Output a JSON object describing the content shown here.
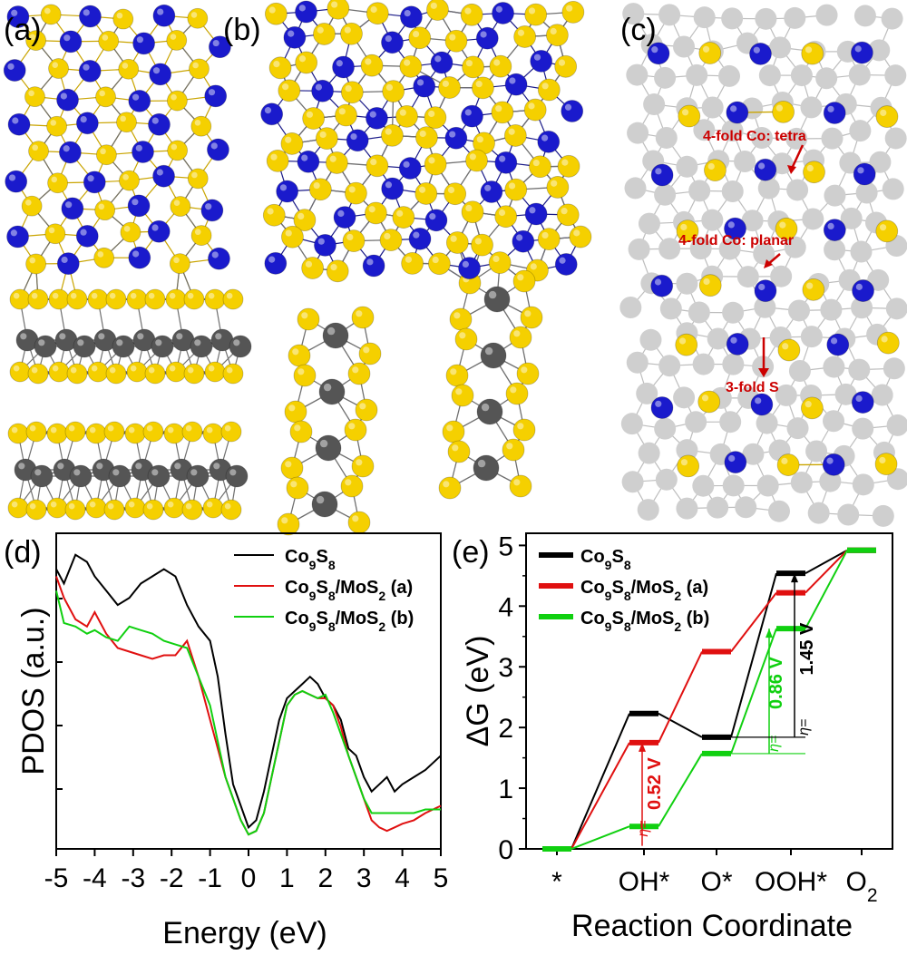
{
  "panels": {
    "a": {
      "label": "(a)"
    },
    "b": {
      "label": "(b)"
    },
    "c": {
      "label": "(c)",
      "annotations": [
        "4-fold Co: tetra",
        "4-fold Co: planar",
        "3-fold S"
      ]
    },
    "d": {
      "label": "(d)"
    },
    "e": {
      "label": "(e)"
    }
  },
  "colors": {
    "co_atom": "#1a1acc",
    "s_atom": "#f5d000",
    "mo_atom": "#555555",
    "bg_atom": "#cfcfcf",
    "annotation": "#cc0000",
    "black_series": "#000000",
    "red_series": "#e01010",
    "green_series": "#10d010"
  },
  "chart_data": [
    {
      "type": "line",
      "panel": "d",
      "xlabel": "Energy (eV)",
      "ylabel": "PDOS (a.u.)",
      "xlim": [
        -5,
        5
      ],
      "xticks": [
        "-5",
        "-4",
        "-3",
        "-2",
        "-1",
        "0",
        "1",
        "2",
        "3",
        "4",
        "5"
      ],
      "legend": [
        "Co9S8",
        "Co9S8/MoS2 (a)",
        "Co9S8/MoS2 (b)"
      ],
      "legend_position": "top-right",
      "series": [
        {
          "name": "Co9S8",
          "color": "#000000",
          "x": [
            -5,
            -4.8,
            -4.5,
            -4.2,
            -4,
            -3.7,
            -3.4,
            -3.1,
            -2.8,
            -2.5,
            -2.2,
            -1.9,
            -1.6,
            -1.3,
            -1,
            -0.8,
            -0.6,
            -0.4,
            -0.2,
            0,
            0.2,
            0.4,
            0.6,
            0.8,
            1,
            1.2,
            1.4,
            1.6,
            1.8,
            2,
            2.2,
            2.4,
            2.6,
            2.8,
            3,
            3.2,
            3.4,
            3.6,
            3.8,
            4,
            4.3,
            4.6,
            5
          ],
          "y": [
            9.1,
            8.9,
            9.3,
            9.2,
            9.0,
            8.8,
            8.6,
            8.7,
            8.9,
            9.0,
            9.1,
            9.0,
            8.6,
            8.3,
            8.1,
            7.6,
            6.8,
            6.1,
            5.8,
            5.5,
            5.6,
            6.0,
            6.5,
            7.0,
            7.3,
            7.4,
            7.5,
            7.6,
            7.5,
            7.3,
            7.2,
            7.0,
            6.6,
            6.5,
            6.2,
            6.0,
            6.1,
            6.2,
            6.0,
            6.1,
            6.2,
            6.3,
            6.5
          ]
        },
        {
          "name": "Co9S8/MoS2 (a)",
          "color": "#e01010",
          "x": [
            -5,
            -4.8,
            -4.5,
            -4.2,
            -4,
            -3.7,
            -3.4,
            -3.1,
            -2.8,
            -2.5,
            -2.2,
            -1.9,
            -1.6,
            -1.3,
            -1,
            -0.8,
            -0.6,
            -0.4,
            -0.2,
            0,
            0.2,
            0.4,
            0.6,
            0.8,
            1,
            1.2,
            1.4,
            1.6,
            1.8,
            2,
            2.2,
            2.4,
            2.6,
            2.8,
            3,
            3.2,
            3.4,
            3.6,
            3.8,
            4,
            4.3,
            4.6,
            5
          ],
          "y": [
            9.0,
            8.7,
            8.4,
            8.3,
            8.5,
            8.2,
            8.0,
            7.95,
            7.9,
            7.85,
            7.9,
            7.9,
            8.1,
            7.6,
            7.0,
            6.6,
            6.2,
            5.9,
            5.6,
            5.4,
            5.45,
            5.7,
            6.2,
            6.7,
            7.2,
            7.35,
            7.4,
            7.35,
            7.3,
            7.3,
            7.2,
            6.9,
            6.5,
            6.2,
            5.9,
            5.6,
            5.5,
            5.45,
            5.5,
            5.55,
            5.6,
            5.7,
            5.8
          ]
        },
        {
          "name": "Co9S8/MoS2 (b)",
          "color": "#10d010",
          "x": [
            -5,
            -4.8,
            -4.5,
            -4.2,
            -4,
            -3.7,
            -3.4,
            -3.1,
            -2.8,
            -2.5,
            -2.2,
            -1.9,
            -1.6,
            -1.3,
            -1,
            -0.8,
            -0.6,
            -0.4,
            -0.2,
            0,
            0.2,
            0.4,
            0.6,
            0.8,
            1,
            1.2,
            1.4,
            1.6,
            1.8,
            2,
            2.2,
            2.4,
            2.6,
            2.8,
            3,
            3.2,
            3.4,
            3.6,
            3.8,
            4,
            4.3,
            4.6,
            5
          ],
          "y": [
            8.8,
            8.35,
            8.3,
            8.2,
            8.25,
            8.15,
            8.1,
            8.3,
            8.25,
            8.2,
            8.1,
            8.05,
            8.0,
            7.6,
            7.2,
            6.7,
            6.2,
            5.9,
            5.6,
            5.4,
            5.45,
            5.7,
            6.2,
            6.7,
            7.2,
            7.35,
            7.4,
            7.35,
            7.3,
            7.35,
            7.1,
            6.8,
            6.5,
            6.2,
            5.9,
            5.7,
            5.7,
            5.7,
            5.7,
            5.7,
            5.7,
            5.75,
            5.75
          ]
        }
      ]
    },
    {
      "type": "line",
      "panel": "e",
      "xlabel": "Reaction Coordinate",
      "ylabel": "ΔG (eV)",
      "ylim": [
        0,
        5.2
      ],
      "yticks": [
        "0",
        "1",
        "2",
        "3",
        "4",
        "5"
      ],
      "categories": [
        "*",
        "OH*",
        "O*",
        "OOH*",
        "O2"
      ],
      "legend": [
        "Co9S8",
        "Co9S8/MoS2 (a)",
        "Co9S8/MoS2 (b)"
      ],
      "legend_position": "top-left",
      "series": [
        {
          "name": "Co9S8",
          "color": "#000000",
          "values": [
            0,
            2.23,
            1.84,
            4.54,
            4.92
          ]
        },
        {
          "name": "Co9S8/MoS2 (a)",
          "color": "#e01010",
          "values": [
            0,
            1.75,
            3.25,
            4.22,
            4.92
          ]
        },
        {
          "name": "Co9S8/MoS2 (b)",
          "color": "#10d010",
          "values": [
            0,
            0.37,
            1.57,
            3.63,
            4.92
          ]
        }
      ],
      "annotations": [
        "0.52 V",
        "0.86 V",
        "1.45 V"
      ],
      "eta": "η="
    }
  ]
}
